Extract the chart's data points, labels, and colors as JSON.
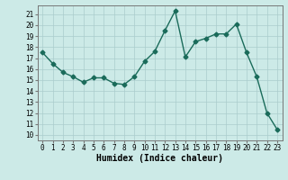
{
  "x": [
    0,
    1,
    2,
    3,
    4,
    5,
    6,
    7,
    8,
    9,
    10,
    11,
    12,
    13,
    14,
    15,
    16,
    17,
    18,
    19,
    20,
    21,
    22,
    23
  ],
  "y": [
    17.5,
    16.5,
    15.7,
    15.3,
    14.8,
    15.2,
    15.2,
    14.7,
    14.6,
    15.3,
    16.7,
    17.6,
    19.5,
    21.3,
    17.1,
    18.5,
    18.8,
    19.2,
    19.2,
    20.1,
    17.5,
    15.3,
    12.0,
    10.5
  ],
  "line_color": "#1a6b5a",
  "marker": "D",
  "marker_size": 2.5,
  "background_color": "#cceae7",
  "grid_color": "#aacccc",
  "xlabel": "Humidex (Indice chaleur)",
  "xlabel_fontsize": 7,
  "xlim": [
    -0.5,
    23.5
  ],
  "ylim": [
    9.5,
    21.8
  ],
  "yticks": [
    10,
    11,
    12,
    13,
    14,
    15,
    16,
    17,
    18,
    19,
    20,
    21
  ],
  "xticks": [
    0,
    1,
    2,
    3,
    4,
    5,
    6,
    7,
    8,
    9,
    10,
    11,
    12,
    13,
    14,
    15,
    16,
    17,
    18,
    19,
    20,
    21,
    22,
    23
  ],
  "tick_fontsize": 5.5
}
